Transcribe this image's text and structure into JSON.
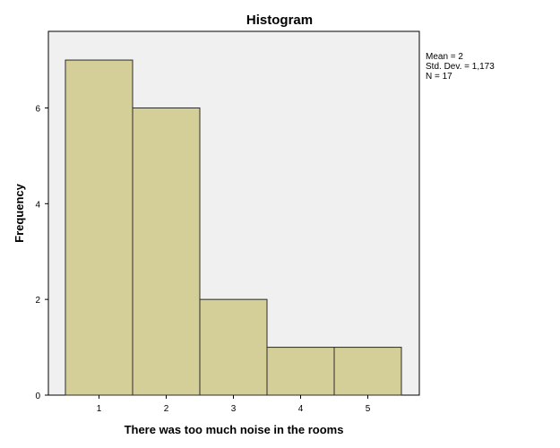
{
  "chart_data": {
    "type": "bar",
    "title": "Histogram",
    "xlabel": "There was too much noise in the rooms",
    "ylabel": "Frequency",
    "categories": [
      "1",
      "2",
      "3",
      "4",
      "5"
    ],
    "values": [
      7,
      6,
      2,
      1,
      1
    ],
    "ylim": [
      0,
      7.6
    ],
    "yticks": [
      "0",
      "2",
      "4",
      "6"
    ],
    "grid": false,
    "colors": {
      "bar_fill": "#d4cf98",
      "bar_stroke": "#2b2b2b",
      "plot_background": "#f0f0f0"
    },
    "stats": {
      "mean": "Mean = 2",
      "std_dev": "Std. Dev. = 1,173",
      "n": "N = 17"
    }
  }
}
